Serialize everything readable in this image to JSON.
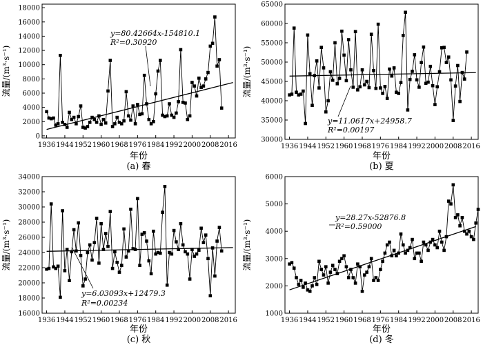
{
  "chart_data": [
    {
      "type": "scatter",
      "caption": "(a) 春",
      "xlabel": "年份",
      "ylabel": "流量/(m³·s⁻¹)",
      "xlim": [
        1934,
        2019
      ],
      "ylim": [
        -300,
        18500
      ],
      "xticks": [
        1936,
        1944,
        1952,
        1960,
        1968,
        1976,
        1984,
        1992,
        2000,
        2008,
        2016
      ],
      "yticks": [
        0,
        2000,
        4000,
        6000,
        8000,
        10000,
        12000,
        14000,
        16000,
        18000
      ],
      "ytick_labels": [
        "0",
        "2000",
        "4000",
        "6000",
        "8000",
        "10000",
        "12000",
        "14000",
        "16000",
        "18000"
      ],
      "equation": "y=80.42664x-154810.1",
      "r2": "R²=0.30920",
      "trend": {
        "slope": 80.42664,
        "intercept": -154810.1
      },
      "x_start": 1936,
      "y": [
        3400,
        2500,
        2400,
        2500,
        1500,
        1700,
        11300,
        1900,
        1600,
        1200,
        3300,
        2300,
        2600,
        1700,
        2700,
        4200,
        1200,
        1100,
        1300,
        1900,
        2600,
        2300,
        1900,
        2800,
        1600,
        2300,
        1800,
        6300,
        10600,
        1300,
        1700,
        2600,
        1900,
        1700,
        2100,
        6200,
        2800,
        2200,
        4200,
        1700,
        4400,
        3000,
        3100,
        8500,
        4500,
        2300,
        1700,
        2000,
        5900,
        9100,
        10600,
        2900,
        2700,
        2800,
        4500,
        2900,
        2600,
        3200,
        4800,
        12100,
        4700,
        4600,
        2300,
        2800,
        7500,
        7000,
        5600,
        8100,
        6800,
        7000,
        8000,
        8900,
        12600,
        13000,
        16700,
        9800,
        10700,
        3900
      ]
    },
    {
      "type": "scatter",
      "caption": "(b) 夏",
      "xlabel": "年份",
      "ylabel": "流量/(m³·s⁻¹)",
      "xlim": [
        1934,
        2019
      ],
      "ylim": [
        30000,
        65000
      ],
      "xticks": [
        1936,
        1944,
        1952,
        1960,
        1968,
        1976,
        1984,
        1992,
        2000,
        2008,
        2016
      ],
      "yticks": [
        30000,
        35000,
        40000,
        45000,
        50000,
        55000,
        60000,
        65000
      ],
      "ytick_labels": [
        "30000",
        "35000",
        "40000",
        "45000",
        "50000",
        "55000",
        "60000",
        "65000"
      ],
      "equation": "y=11.0617x+24958.7",
      "r2": "R²=0.00197",
      "trend": {
        "slope": 11.0617,
        "intercept": 24958.7
      },
      "x_start": 1936,
      "y": [
        41500,
        41700,
        58800,
        42200,
        41500,
        41700,
        42500,
        34100,
        57000,
        47000,
        38800,
        46500,
        50300,
        43300,
        53800,
        48500,
        37100,
        40000,
        47500,
        45300,
        55000,
        44400,
        45800,
        58000,
        51800,
        45200,
        55800,
        48000,
        43500,
        57900,
        42800,
        43600,
        48000,
        44100,
        45000,
        43400,
        57200,
        47800,
        43200,
        59800,
        43300,
        41900,
        43700,
        40600,
        48200,
        46400,
        48500,
        42200,
        41900,
        44700,
        56900,
        62900,
        37600,
        45500,
        47600,
        51900,
        45400,
        43500,
        49900,
        53900,
        44500,
        44800,
        48900,
        43900,
        39000,
        43600,
        47500,
        53700,
        53800,
        49900,
        51300,
        45400,
        34900,
        43800,
        49100,
        39800,
        47300,
        45600,
        52600
      ]
    },
    {
      "type": "scatter",
      "caption": "(c) 秋",
      "xlabel": "年份",
      "ylabel": "流量/(m³·s⁻¹)",
      "xlim": [
        1934,
        2019
      ],
      "ylim": [
        16000,
        34000
      ],
      "xticks": [
        1936,
        1944,
        1952,
        1960,
        1968,
        1976,
        1984,
        1992,
        2000,
        2008,
        2016
      ],
      "yticks": [
        16000,
        18000,
        20000,
        22000,
        24000,
        26000,
        28000,
        30000,
        32000,
        34000
      ],
      "ytick_labels": [
        "16000",
        "18000",
        "20000",
        "22000",
        "24000",
        "26000",
        "28000",
        "30000",
        "32000",
        "34000"
      ],
      "equation": "y=6.03093x+12479.3",
      "r2": "R²=0.00234",
      "trend": {
        "slope": 6.03093,
        "intercept": 12479.3
      },
      "x_start": 1936,
      "y": [
        21800,
        21900,
        30400,
        22100,
        21900,
        22200,
        18100,
        29500,
        21600,
        24400,
        20300,
        24100,
        27000,
        24200,
        27900,
        23600,
        19600,
        20500,
        24000,
        25000,
        23000,
        25300,
        28500,
        22600,
        27800,
        24400,
        26500,
        24800,
        29400,
        21900,
        24100,
        22700,
        21400,
        22300,
        27100,
        23400,
        24200,
        29700,
        24500,
        24400,
        31100,
        22300,
        26400,
        26600,
        25500,
        22900,
        21200,
        26800,
        23800,
        24000,
        23900,
        29300,
        32700,
        19700,
        24000,
        23800,
        26900,
        25400,
        24400,
        27800,
        25000,
        24100,
        23800,
        20500,
        24400,
        23500,
        23800,
        24300,
        27200,
        25300,
        26300,
        23200,
        18300,
        24600,
        20900,
        25500,
        27300,
        24200
      ]
    },
    {
      "type": "scatter",
      "caption": "(d) 冬",
      "xlabel": "年份",
      "ylabel": "流量/(m³·s⁻¹)",
      "xlim": [
        1934,
        2019
      ],
      "ylim": [
        1000,
        6000
      ],
      "xticks": [
        1936,
        1944,
        1952,
        1960,
        1968,
        1976,
        1984,
        1992,
        2000,
        2008,
        2016
      ],
      "yticks": [
        1000,
        2000,
        3000,
        4000,
        5000,
        6000
      ],
      "ytick_labels": [
        "1000",
        "2000",
        "3000",
        "4000",
        "5000",
        "6000"
      ],
      "equation": "y=28.27x-52876.8",
      "r2": "R²=0.59000",
      "trend": {
        "slope": 28.27,
        "intercept": -52876.8
      },
      "x_start": 1936,
      "y": [
        2800,
        2850,
        2650,
        2300,
        2050,
        2200,
        1950,
        2100,
        1850,
        1800,
        2000,
        2300,
        2050,
        2900,
        2600,
        2400,
        2700,
        2100,
        2500,
        2750,
        2600,
        2450,
        2900,
        3000,
        3100,
        2700,
        2300,
        2600,
        2300,
        2100,
        2800,
        2700,
        1800,
        2400,
        2500,
        2700,
        3000,
        2200,
        2300,
        2200,
        2600,
        2900,
        3200,
        3500,
        3600,
        3100,
        3300,
        3100,
        3200,
        3900,
        3500,
        3200,
        3300,
        3400,
        3700,
        3000,
        3200,
        3200,
        2900,
        3600,
        3500,
        3300,
        3600,
        3700,
        3500,
        3400,
        4000,
        3600,
        3300,
        3800,
        5100,
        5000,
        5700,
        4500,
        4600,
        4200,
        4500,
        4000,
        3900,
        4000,
        3800,
        3700,
        4300,
        4800
      ]
    }
  ]
}
